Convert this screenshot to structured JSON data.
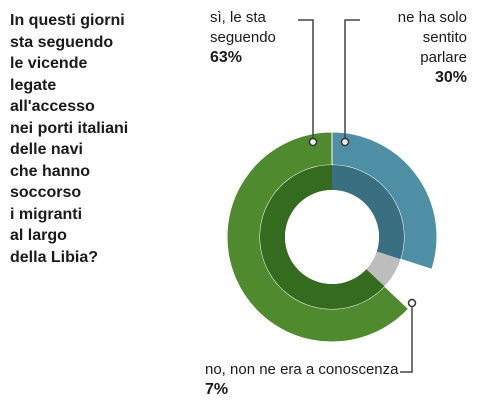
{
  "question_lines": [
    "In questi giorni",
    "sta seguendo",
    "le vicende",
    "legate",
    "all'accesso",
    "nei porti italiani",
    "delle navi",
    "che hanno",
    "soccorso",
    "i migranti",
    "al largo",
    "della Libia?"
  ],
  "chart_data": {
    "type": "pie",
    "style": "donut",
    "slices": [
      {
        "label": "ne ha solo sentito parlare",
        "value": 30,
        "value_label": "30%",
        "color": "#4e8fa6",
        "inner_color": "#3a6f82"
      },
      {
        "label": "no, non ne era a conoscenza",
        "value": 7,
        "value_label": "7%",
        "color": "#ffffff",
        "inner_color": "#bdbdbd"
      },
      {
        "label": "sì, le sta seguendo",
        "value": 63,
        "value_label": "63%",
        "color": "#4f8a2e",
        "inner_color": "#356b1f"
      }
    ],
    "labels": {
      "yes": {
        "line1": "sì, le sta",
        "line2": "seguendo",
        "pct": "63%"
      },
      "heard": {
        "line1": "ne ha solo",
        "line2": "sentito",
        "line3": "parlare",
        "pct": "30%"
      },
      "no": {
        "line1": "no, non ne era a conoscenza",
        "pct": "7%"
      }
    }
  }
}
